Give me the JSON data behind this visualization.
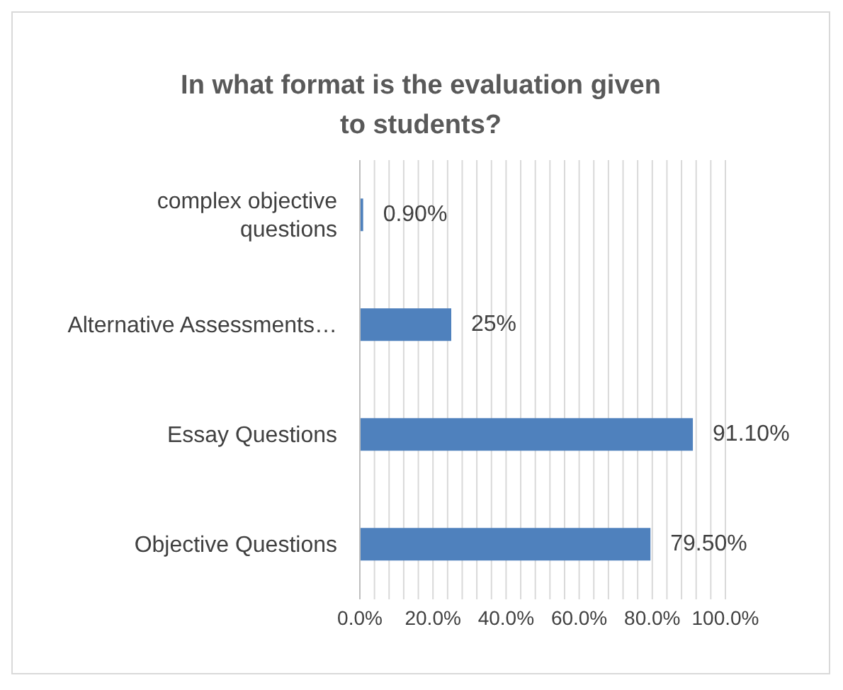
{
  "chart_data": {
    "type": "bar",
    "orientation": "horizontal",
    "title": "In what format is the evaluation given to students?",
    "categories": [
      "complex objective questions",
      "Alternative Assessments…",
      "Essay Questions",
      "Objective Questions"
    ],
    "values": [
      0.9,
      25,
      91.1,
      79.5
    ],
    "value_labels": [
      "0.90%",
      "25%",
      "91.10%",
      "79.50%"
    ],
    "color": "#4f81bd",
    "xlim": [
      0,
      100
    ],
    "xticks": [
      {
        "value": 0,
        "label": "0.0%"
      },
      {
        "value": 4,
        "label": null
      },
      {
        "value": 8,
        "label": null
      },
      {
        "value": 12,
        "label": null
      },
      {
        "value": 16,
        "label": null
      },
      {
        "value": 20,
        "label": "20.0%"
      },
      {
        "value": 24,
        "label": null
      },
      {
        "value": 28,
        "label": null
      },
      {
        "value": 32,
        "label": null
      },
      {
        "value": 36,
        "label": null
      },
      {
        "value": 40,
        "label": "40.0%"
      },
      {
        "value": 44,
        "label": null
      },
      {
        "value": 48,
        "label": null
      },
      {
        "value": 52,
        "label": null
      },
      {
        "value": 56,
        "label": null
      },
      {
        "value": 60,
        "label": "60.0%"
      },
      {
        "value": 64,
        "label": null
      },
      {
        "value": 68,
        "label": null
      },
      {
        "value": 72,
        "label": null
      },
      {
        "value": 76,
        "label": null
      },
      {
        "value": 80,
        "label": "80.0%"
      },
      {
        "value": 84,
        "label": null
      },
      {
        "value": 88,
        "label": null
      },
      {
        "value": 92,
        "label": null
      },
      {
        "value": 96,
        "label": null
      },
      {
        "value": 100,
        "label": "100.0%"
      }
    ],
    "grid": "x"
  }
}
